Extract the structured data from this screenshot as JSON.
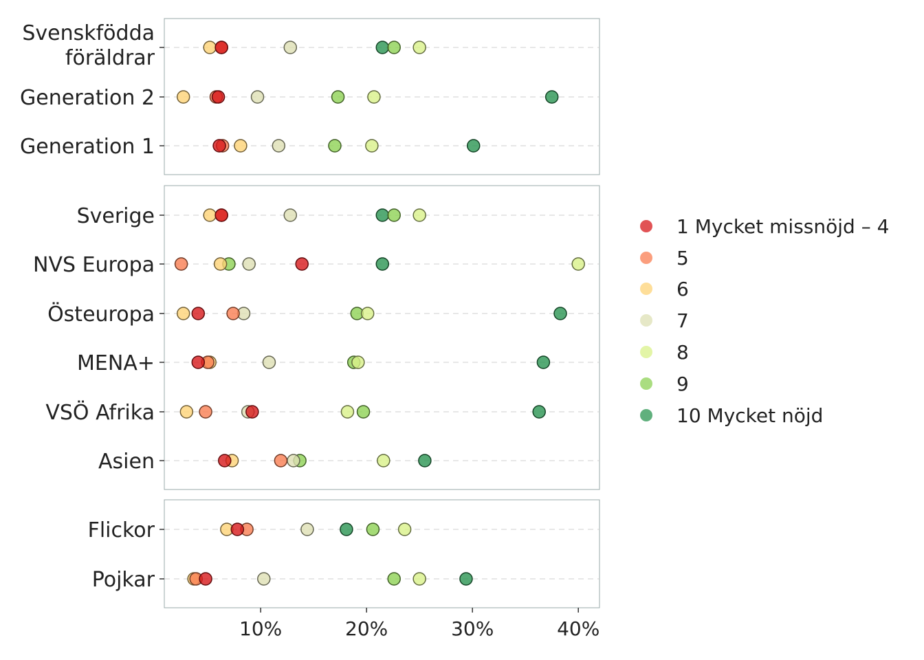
{
  "chart_data": {
    "type": "scatter",
    "x_axis": {
      "range": [
        0.9,
        42
      ],
      "ticks": [
        10,
        20,
        30,
        40
      ],
      "tick_labels": [
        "10%",
        "20%",
        "30%",
        "40%"
      ],
      "grid": false
    },
    "y_grid": "dashed",
    "legend": {
      "placement": "right",
      "entries": [
        {
          "key": "1-4",
          "label": "1 Mycket missnöjd – 4",
          "color": "#d7191c"
        },
        {
          "key": "5",
          "label": "5",
          "color": "#f97e52"
        },
        {
          "key": "6",
          "label": "6",
          "color": "#fed377"
        },
        {
          "key": "7",
          "label": "7",
          "color": "#dee0b4"
        },
        {
          "key": "8",
          "label": "8",
          "color": "#d9f18a"
        },
        {
          "key": "9",
          "label": "9",
          "color": "#8ed255"
        },
        {
          "key": "10",
          "label": "10 Mycket nöjd",
          "color": "#2b9552"
        }
      ]
    },
    "panels": [
      {
        "rows": [
          {
            "label": [
              "Svenskfödda",
              "föräldrar"
            ],
            "values": {
              "1-4": 6.3,
              "5": 6.3,
              "6": 5.2,
              "7": 12.8,
              "8": 25.0,
              "9": 22.6,
              "10": 21.5
            }
          },
          {
            "label": [
              "Generation 2"
            ],
            "values": {
              "1-4": 6.0,
              "5": 5.8,
              "6": 2.7,
              "7": 9.7,
              "8": 20.7,
              "9": 17.3,
              "10": 37.5
            }
          },
          {
            "label": [
              "Generation 1"
            ],
            "values": {
              "1-4": 6.1,
              "5": 6.4,
              "6": 8.1,
              "7": 11.7,
              "8": 20.5,
              "9": 17.0,
              "10": 30.1
            }
          }
        ]
      },
      {
        "rows": [
          {
            "label": [
              "Sverige"
            ],
            "values": {
              "1-4": 6.3,
              "5": 6.3,
              "6": 5.2,
              "7": 12.8,
              "8": 25.0,
              "9": 22.6,
              "10": 21.5
            }
          },
          {
            "label": [
              "NVS Europa"
            ],
            "values": {
              "1-4": 13.9,
              "5": 2.5,
              "6": 6.2,
              "7": 8.9,
              "8": 40.0,
              "9": 7.0,
              "10": 21.5
            }
          },
          {
            "label": [
              "Östeuropa"
            ],
            "values": {
              "1-4": 4.1,
              "5": 7.4,
              "6": 2.7,
              "7": 8.4,
              "8": 20.1,
              "9": 19.1,
              "10": 38.3
            }
          },
          {
            "label": [
              "MENA+"
            ],
            "values": {
              "1-4": 4.1,
              "5": 5.0,
              "6": 5.2,
              "7": 10.8,
              "8": 19.2,
              "9": 18.8,
              "10": 36.7
            }
          },
          {
            "label": [
              "VSÖ Afrika"
            ],
            "values": {
              "1-4": 9.2,
              "5": 4.8,
              "6": 3.0,
              "7": 8.8,
              "8": 18.2,
              "9": 19.7,
              "10": 36.3
            }
          },
          {
            "label": [
              "Asien"
            ],
            "values": {
              "1-4": 6.6,
              "5": 11.9,
              "6": 7.3,
              "7": 13.1,
              "8": 21.6,
              "9": 13.7,
              "10": 25.5
            }
          }
        ]
      },
      {
        "rows": [
          {
            "label": [
              "Flickor"
            ],
            "values": {
              "1-4": 7.8,
              "5": 8.7,
              "6": 6.8,
              "7": 14.4,
              "8": 23.6,
              "9": 20.6,
              "10": 18.1
            }
          },
          {
            "label": [
              "Pojkar"
            ],
            "values": {
              "1-4": 4.8,
              "5": 3.9,
              "6": 3.7,
              "7": 10.3,
              "8": 25.0,
              "9": 22.6,
              "10": 29.4
            }
          }
        ]
      }
    ]
  }
}
